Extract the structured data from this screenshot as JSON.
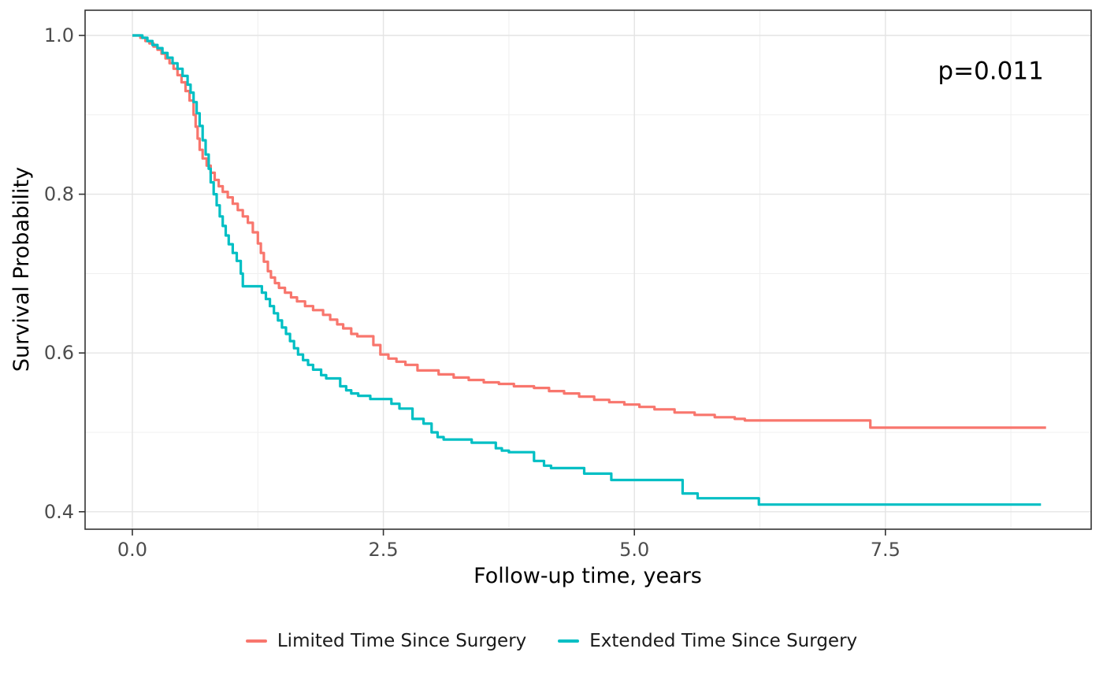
{
  "chart_data": {
    "type": "line",
    "subtype": "kaplan-meier-step",
    "title": "",
    "xlabel": "Follow-up time, years",
    "ylabel": "Survival Probability",
    "x_ticks": [
      0.0,
      2.5,
      5.0,
      7.5
    ],
    "x_tick_labels": [
      "0.0",
      "2.5",
      "5.0",
      "7.5"
    ],
    "x_minor_ticks": [
      1.25,
      3.75,
      6.25,
      8.75
    ],
    "y_ticks": [
      0.4,
      0.6,
      0.8,
      1.0
    ],
    "y_tick_labels": [
      "0.4",
      "0.6",
      "0.8",
      "1.0"
    ],
    "y_minor_ticks": [
      0.5,
      0.7,
      0.9
    ],
    "xlim": [
      -0.47,
      9.55
    ],
    "ylim": [
      0.378,
      1.032
    ],
    "grid": true,
    "legend_position": "bottom",
    "annotation": {
      "text": "p=0.011",
      "x": 8.55,
      "y": 0.945
    },
    "colors": {
      "limited": "#F8766D",
      "extended": "#00BFC4"
    },
    "series": [
      {
        "name": "Limited Time Since Surgery",
        "color": "#F8766D",
        "points": [
          [
            0.0,
            1.0
          ],
          [
            0.08,
            0.997
          ],
          [
            0.13,
            0.993
          ],
          [
            0.17,
            0.99
          ],
          [
            0.21,
            0.986
          ],
          [
            0.25,
            0.982
          ],
          [
            0.29,
            0.977
          ],
          [
            0.33,
            0.971
          ],
          [
            0.37,
            0.965
          ],
          [
            0.41,
            0.958
          ],
          [
            0.45,
            0.95
          ],
          [
            0.49,
            0.941
          ],
          [
            0.53,
            0.93
          ],
          [
            0.57,
            0.918
          ],
          [
            0.61,
            0.9
          ],
          [
            0.63,
            0.885
          ],
          [
            0.65,
            0.87
          ],
          [
            0.67,
            0.856
          ],
          [
            0.7,
            0.845
          ],
          [
            0.74,
            0.836
          ],
          [
            0.78,
            0.827
          ],
          [
            0.82,
            0.818
          ],
          [
            0.86,
            0.81
          ],
          [
            0.9,
            0.803
          ],
          [
            0.95,
            0.796
          ],
          [
            1.0,
            0.788
          ],
          [
            1.05,
            0.78
          ],
          [
            1.1,
            0.772
          ],
          [
            1.15,
            0.764
          ],
          [
            1.2,
            0.752
          ],
          [
            1.25,
            0.738
          ],
          [
            1.28,
            0.726
          ],
          [
            1.31,
            0.715
          ],
          [
            1.35,
            0.703
          ],
          [
            1.38,
            0.695
          ],
          [
            1.42,
            0.688
          ],
          [
            1.46,
            0.682
          ],
          [
            1.52,
            0.676
          ],
          [
            1.58,
            0.67
          ],
          [
            1.64,
            0.665
          ],
          [
            1.72,
            0.659
          ],
          [
            1.8,
            0.654
          ],
          [
            1.9,
            0.648
          ],
          [
            1.97,
            0.642
          ],
          [
            2.04,
            0.636
          ],
          [
            2.1,
            0.631
          ],
          [
            2.18,
            0.624
          ],
          [
            2.24,
            0.621
          ],
          [
            2.4,
            0.61
          ],
          [
            2.47,
            0.598
          ],
          [
            2.55,
            0.593
          ],
          [
            2.63,
            0.589
          ],
          [
            2.72,
            0.585
          ],
          [
            2.84,
            0.578
          ],
          [
            3.05,
            0.573
          ],
          [
            3.2,
            0.569
          ],
          [
            3.35,
            0.566
          ],
          [
            3.5,
            0.563
          ],
          [
            3.65,
            0.561
          ],
          [
            3.8,
            0.558
          ],
          [
            4.0,
            0.556
          ],
          [
            4.15,
            0.552
          ],
          [
            4.3,
            0.549
          ],
          [
            4.45,
            0.545
          ],
          [
            4.6,
            0.541
          ],
          [
            4.75,
            0.538
          ],
          [
            4.9,
            0.535
          ],
          [
            5.05,
            0.532
          ],
          [
            5.2,
            0.529
          ],
          [
            5.4,
            0.525
          ],
          [
            5.6,
            0.522
          ],
          [
            5.8,
            0.519
          ],
          [
            6.0,
            0.517
          ],
          [
            6.1,
            0.515
          ],
          [
            7.35,
            0.506
          ],
          [
            9.1,
            0.506
          ]
        ]
      },
      {
        "name": "Extended Time Since Surgery",
        "color": "#00BFC4",
        "points": [
          [
            0.0,
            1.0
          ],
          [
            0.1,
            0.997
          ],
          [
            0.15,
            0.993
          ],
          [
            0.2,
            0.988
          ],
          [
            0.25,
            0.984
          ],
          [
            0.3,
            0.978
          ],
          [
            0.35,
            0.972
          ],
          [
            0.4,
            0.965
          ],
          [
            0.45,
            0.958
          ],
          [
            0.5,
            0.949
          ],
          [
            0.55,
            0.938
          ],
          [
            0.58,
            0.928
          ],
          [
            0.61,
            0.916
          ],
          [
            0.64,
            0.902
          ],
          [
            0.67,
            0.886
          ],
          [
            0.7,
            0.868
          ],
          [
            0.73,
            0.85
          ],
          [
            0.76,
            0.832
          ],
          [
            0.78,
            0.815
          ],
          [
            0.81,
            0.8
          ],
          [
            0.84,
            0.786
          ],
          [
            0.87,
            0.772
          ],
          [
            0.9,
            0.76
          ],
          [
            0.93,
            0.748
          ],
          [
            0.96,
            0.737
          ],
          [
            1.0,
            0.726
          ],
          [
            1.04,
            0.716
          ],
          [
            1.08,
            0.7
          ],
          [
            1.1,
            0.684
          ],
          [
            1.29,
            0.676
          ],
          [
            1.33,
            0.668
          ],
          [
            1.37,
            0.659
          ],
          [
            1.41,
            0.65
          ],
          [
            1.45,
            0.641
          ],
          [
            1.49,
            0.632
          ],
          [
            1.53,
            0.624
          ],
          [
            1.57,
            0.615
          ],
          [
            1.61,
            0.606
          ],
          [
            1.65,
            0.598
          ],
          [
            1.7,
            0.591
          ],
          [
            1.75,
            0.585
          ],
          [
            1.8,
            0.579
          ],
          [
            1.88,
            0.572
          ],
          [
            1.93,
            0.568
          ],
          [
            2.07,
            0.558
          ],
          [
            2.13,
            0.553
          ],
          [
            2.18,
            0.549
          ],
          [
            2.25,
            0.546
          ],
          [
            2.37,
            0.542
          ],
          [
            2.58,
            0.536
          ],
          [
            2.66,
            0.53
          ],
          [
            2.79,
            0.517
          ],
          [
            2.9,
            0.511
          ],
          [
            2.98,
            0.5
          ],
          [
            3.04,
            0.494
          ],
          [
            3.1,
            0.491
          ],
          [
            3.38,
            0.487
          ],
          [
            3.62,
            0.48
          ],
          [
            3.68,
            0.477
          ],
          [
            3.75,
            0.475
          ],
          [
            4.0,
            0.464
          ],
          [
            4.1,
            0.458
          ],
          [
            4.17,
            0.455
          ],
          [
            4.5,
            0.448
          ],
          [
            4.77,
            0.44
          ],
          [
            5.48,
            0.423
          ],
          [
            5.63,
            0.417
          ],
          [
            6.24,
            0.409
          ],
          [
            9.05,
            0.409
          ]
        ]
      }
    ]
  },
  "legend": {
    "items": [
      {
        "label": "Limited Time Since Surgery",
        "color": "#F8766D"
      },
      {
        "label": "Extended Time Since Surgery",
        "color": "#00BFC4"
      }
    ]
  }
}
